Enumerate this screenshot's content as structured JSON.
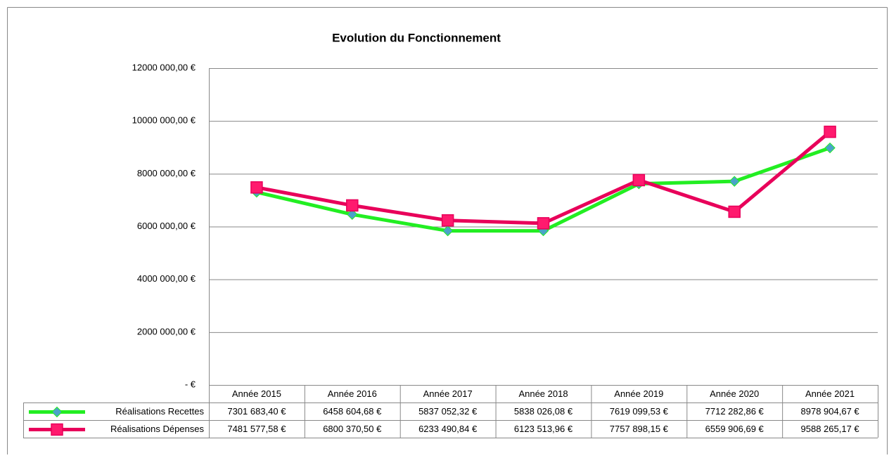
{
  "chart_data": {
    "type": "line",
    "title": "Evolution du Fonctionnement",
    "categories": [
      "Année 2015",
      "Année 2016",
      "Année 2017",
      "Année 2018",
      "Année 2019",
      "Année 2020",
      "Année 2021"
    ],
    "series": [
      {
        "name": "Réalisations Recettes",
        "color": "#22ee22",
        "marker": "diamond",
        "marker_color": "#4aa3c8",
        "values": [
          7301683.4,
          6458604.68,
          5837052.32,
          5838026.08,
          7619099.53,
          7712282.86,
          8978904.67
        ],
        "value_labels": [
          "7301 683,40 €",
          "6458 604,68 €",
          "5837 052,32 €",
          "5838 026,08 €",
          "7619 099,53 €",
          "7712 282,86 €",
          "8978 904,67 €"
        ]
      },
      {
        "name": "Réalisations Dépenses",
        "color": "#e8005a",
        "marker": "square",
        "marker_color": "#ff1a6e",
        "values": [
          7481577.58,
          6800370.5,
          6233490.84,
          6123513.96,
          7757898.15,
          6559906.69,
          9588265.17
        ],
        "value_labels": [
          "7481 577,58 €",
          "6800 370,50 €",
          "6233 490,84 €",
          "6123 513,96 €",
          "7757 898,15 €",
          "6559 906,69 €",
          "9588 265,17 €"
        ]
      }
    ],
    "ylim": [
      0,
      12000000
    ],
    "yticks": [
      {
        "value": 0,
        "label": "-  €"
      },
      {
        "value": 2000000,
        "label": "2000 000,00 €"
      },
      {
        "value": 4000000,
        "label": "4000 000,00 €"
      },
      {
        "value": 6000000,
        "label": "6000 000,00 €"
      },
      {
        "value": 8000000,
        "label": "8000 000,00 €"
      },
      {
        "value": 10000000,
        "label": "10000 000,00 €"
      },
      {
        "value": 12000000,
        "label": "12000 000,00 €"
      }
    ],
    "grid": true
  }
}
